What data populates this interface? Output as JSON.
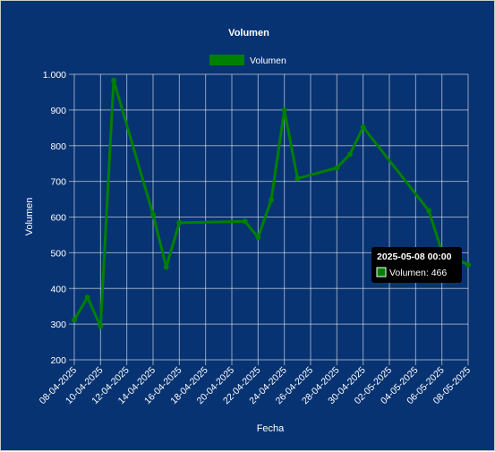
{
  "colors": {
    "background": "#083372",
    "series": "#008000",
    "grid": "#ffffff",
    "text": "#ffffff",
    "tooltip_bg": "#000000"
  },
  "chart_data": {
    "type": "line",
    "title": "Volumen",
    "xlabel": "Fecha",
    "ylabel": "Volumen",
    "ylim": [
      200,
      1000
    ],
    "yticks": [
      "200",
      "300",
      "400",
      "500",
      "600",
      "700",
      "800",
      "900",
      "1.000"
    ],
    "xlim": [
      "2025-04-08",
      "2025-05-08"
    ],
    "xticks": [
      "08-04-2025",
      "10-04-2025",
      "12-04-2025",
      "14-04-2025",
      "16-04-2025",
      "18-04-2025",
      "20-04-2025",
      "22-04-2025",
      "24-04-2025",
      "26-04-2025",
      "28-04-2025",
      "30-04-2025",
      "02-05-2025",
      "04-05-2025",
      "06-05-2025",
      "08-05-2025"
    ],
    "grid": true,
    "legend_position": "top",
    "series": [
      {
        "name": "Volumen",
        "color": "#008000",
        "points": [
          {
            "x": "2025-04-08",
            "y": 312
          },
          {
            "x": "2025-04-09",
            "y": 375
          },
          {
            "x": "2025-04-10",
            "y": 294
          },
          {
            "x": "2025-04-11",
            "y": 983
          },
          {
            "x": "2025-04-14",
            "y": 607
          },
          {
            "x": "2025-04-15",
            "y": 460
          },
          {
            "x": "2025-04-16",
            "y": 584
          },
          {
            "x": "2025-04-21",
            "y": 588
          },
          {
            "x": "2025-04-22",
            "y": 543
          },
          {
            "x": "2025-04-23",
            "y": 648
          },
          {
            "x": "2025-04-24",
            "y": 900
          },
          {
            "x": "2025-04-25",
            "y": 708
          },
          {
            "x": "2025-04-28",
            "y": 738
          },
          {
            "x": "2025-04-29",
            "y": 776
          },
          {
            "x": "2025-04-30",
            "y": 852
          },
          {
            "x": "2025-05-05",
            "y": 618
          },
          {
            "x": "2025-05-06",
            "y": 503
          },
          {
            "x": "2025-05-08",
            "y": 466
          }
        ]
      }
    ],
    "tooltip": {
      "title": "2025-05-08 00:00",
      "label": "Volumen: 466"
    }
  }
}
